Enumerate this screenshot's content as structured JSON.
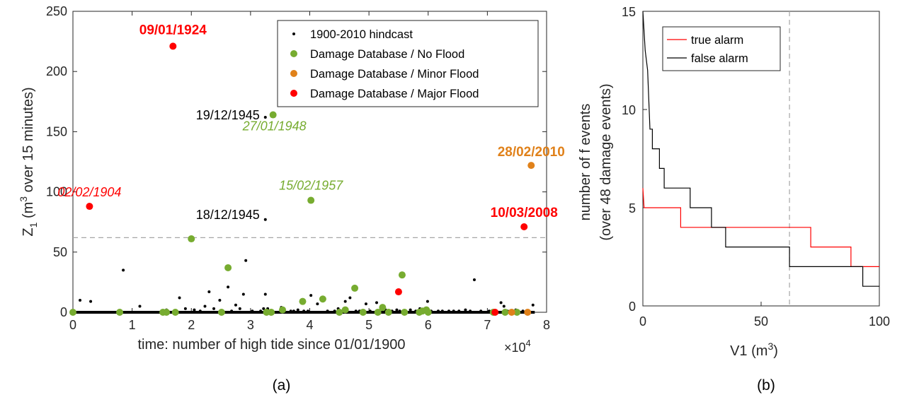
{
  "chart_data": [
    {
      "panel": "(a)",
      "type": "scatter",
      "xlabel": "time: number of high tide since 01/01/1900",
      "ylabel_prefix": "Z",
      "ylabel_sub": "1",
      "ylabel_mid": " (m",
      "ylabel_sup": "3",
      "ylabel_suffix": " over 15 minutes)",
      "xlim": [
        0,
        80000
      ],
      "ylim": [
        0,
        250
      ],
      "x_exponent_label": "×10",
      "x_exponent_power": "4",
      "xticks": [
        0,
        10000,
        20000,
        30000,
        40000,
        50000,
        60000,
        70000,
        80000
      ],
      "xtick_labels": [
        "0",
        "1",
        "2",
        "3",
        "4",
        "5",
        "6",
        "7",
        "8"
      ],
      "yticks": [
        0,
        50,
        100,
        150,
        200,
        250
      ],
      "ytick_labels": [
        "0",
        "50",
        "100",
        "150",
        "200",
        "250"
      ],
      "threshold_y": 62,
      "baseline": {
        "x_from": 0,
        "x_to": 78000,
        "y": 0
      },
      "legend_position": "top-right",
      "series": [
        {
          "name": "1900-2010 hindcast",
          "color": "#000000",
          "marker": "dot",
          "points": [
            [
              1200,
              10
            ],
            [
              3000,
              9
            ],
            [
              8500,
              35
            ],
            [
              11300,
              5
            ],
            [
              15800,
              2
            ],
            [
              18000,
              12
            ],
            [
              19000,
              3
            ],
            [
              20500,
              2
            ],
            [
              21500,
              1
            ],
            [
              22300,
              5
            ],
            [
              23000,
              17
            ],
            [
              23800,
              3
            ],
            [
              24800,
              10
            ],
            [
              26200,
              21
            ],
            [
              26800,
              1
            ],
            [
              27500,
              6
            ],
            [
              28200,
              3
            ],
            [
              28800,
              15
            ],
            [
              29200,
              43
            ],
            [
              30300,
              1
            ],
            [
              31700,
              1
            ],
            [
              32200,
              3
            ],
            [
              32500,
              15
            ],
            [
              32900,
              3
            ],
            [
              33500,
              1
            ],
            [
              33700,
              1
            ],
            [
              35200,
              4
            ],
            [
              36800,
              1
            ],
            [
              37300,
              1
            ],
            [
              38000,
              2
            ],
            [
              39000,
              1
            ],
            [
              39700,
              1
            ],
            [
              40200,
              14
            ],
            [
              41300,
              7
            ],
            [
              43000,
              1
            ],
            [
              44200,
              1
            ],
            [
              44800,
              3
            ],
            [
              45500,
              1
            ],
            [
              46000,
              9
            ],
            [
              46800,
              12
            ],
            [
              47800,
              1
            ],
            [
              48400,
              1
            ],
            [
              49500,
              7
            ],
            [
              50200,
              1
            ],
            [
              51300,
              8
            ],
            [
              52000,
              3
            ],
            [
              52800,
              2
            ],
            [
              53900,
              1
            ],
            [
              54700,
              2
            ],
            [
              55200,
              1
            ],
            [
              56000,
              1
            ],
            [
              57000,
              2
            ],
            [
              57900,
              1
            ],
            [
              58600,
              3
            ],
            [
              59300,
              1
            ],
            [
              59900,
              9
            ],
            [
              60500,
              1
            ],
            [
              61700,
              1
            ],
            [
              62400,
              1
            ],
            [
              63500,
              1
            ],
            [
              64300,
              1
            ],
            [
              65200,
              1
            ],
            [
              66300,
              2
            ],
            [
              67100,
              1
            ],
            [
              67800,
              27
            ],
            [
              68900,
              1
            ],
            [
              70300,
              1
            ],
            [
              71500,
              1
            ],
            [
              72300,
              8
            ],
            [
              72800,
              5
            ],
            [
              73400,
              1
            ],
            [
              74800,
              2
            ],
            [
              76000,
              1
            ],
            [
              77000,
              1
            ],
            [
              77700,
              6
            ],
            [
              32500,
              162
            ],
            [
              32500,
              77
            ]
          ]
        },
        {
          "name": "Damage Database / No Flood",
          "color": "#77ac30",
          "marker": "circle",
          "points": [
            [
              0,
              0
            ],
            [
              7900,
              0
            ],
            [
              15200,
              0
            ],
            [
              15800,
              0
            ],
            [
              17300,
              0
            ],
            [
              20000,
              61
            ],
            [
              26200,
              37
            ],
            [
              25100,
              0
            ],
            [
              32700,
              0
            ],
            [
              33500,
              0
            ],
            [
              33800,
              164
            ],
            [
              35400,
              2
            ],
            [
              38800,
              9
            ],
            [
              40200,
              93
            ],
            [
              42200,
              11
            ],
            [
              45000,
              0
            ],
            [
              46000,
              2
            ],
            [
              47600,
              20
            ],
            [
              49000,
              0
            ],
            [
              51500,
              0
            ],
            [
              52300,
              4
            ],
            [
              53300,
              0
            ],
            [
              55600,
              31
            ],
            [
              56000,
              0
            ],
            [
              58500,
              0
            ],
            [
              59000,
              1
            ],
            [
              59700,
              2
            ],
            [
              60000,
              0
            ],
            [
              71000,
              0
            ],
            [
              73000,
              0
            ],
            [
              75000,
              0
            ]
          ]
        },
        {
          "name": "Damage Database / Minor Flood",
          "color": "#d95319",
          "fill": "#e0811a",
          "marker": "circle",
          "points": [
            [
              74100,
              0
            ],
            [
              76800,
              0
            ],
            [
              77400,
              122
            ]
          ]
        },
        {
          "name": "Damage Database / Major Flood",
          "color": "#ff0000",
          "marker": "circle",
          "points": [
            [
              2800,
              88
            ],
            [
              16900,
              221
            ],
            [
              55000,
              17
            ],
            [
              71300,
              0
            ],
            [
              76200,
              71
            ]
          ]
        }
      ],
      "annotations": [
        {
          "text": "09/01/1924",
          "x": 16900,
          "y": 221,
          "color": "#ff0000",
          "style": "bold"
        },
        {
          "text": "02/02/1904",
          "x": 2800,
          "y": 88,
          "color": "#ff0000",
          "style": "italic"
        },
        {
          "text": "19/12/1945",
          "x": 32500,
          "y": 162,
          "color": "#000000",
          "style": "normal"
        },
        {
          "text": "18/12/1945",
          "x": 32500,
          "y": 77,
          "color": "#000000",
          "style": "normal"
        },
        {
          "text": "27/01/1948",
          "x": 33800,
          "y": 164,
          "color": "#77ac30",
          "style": "italic"
        },
        {
          "text": "15/02/1957",
          "x": 40200,
          "y": 93,
          "color": "#77ac30",
          "style": "italic"
        },
        {
          "text": "28/02/2010",
          "x": 77400,
          "y": 122,
          "color": "#e0811a",
          "style": "bold"
        },
        {
          "text": "10/03/2008",
          "x": 76200,
          "y": 71,
          "color": "#ff0000",
          "style": "bold"
        }
      ]
    },
    {
      "panel": "(b)",
      "type": "line",
      "xlabel_main": "V1 (m",
      "xlabel_sup": "3",
      "xlabel_end": ")",
      "ylabel_line1": "number of f events",
      "ylabel_line2": "(over 48 damage events)",
      "xlim": [
        0,
        100
      ],
      "ylim": [
        0,
        15
      ],
      "xticks": [
        0,
        50,
        100
      ],
      "xtick_labels": [
        "0",
        "50",
        "100"
      ],
      "yticks": [
        0,
        5,
        10,
        15
      ],
      "ytick_labels": [
        "0",
        "5",
        "10",
        "15"
      ],
      "threshold_x": 62,
      "legend_position": "top-right",
      "series": [
        {
          "name": "true alarm",
          "color": "#ff0000",
          "points": [
            [
              0,
              6
            ],
            [
              0.5,
              5
            ],
            [
              16,
              5
            ],
            [
              16,
              4
            ],
            [
              71,
              4
            ],
            [
              71,
              3
            ],
            [
              88,
              3
            ],
            [
              88,
              2
            ],
            [
              100,
              2
            ]
          ]
        },
        {
          "name": "false alarm",
          "color": "#000000",
          "points": [
            [
              0,
              15
            ],
            [
              1,
              13
            ],
            [
              2,
              12
            ],
            [
              3,
              9
            ],
            [
              4,
              9
            ],
            [
              4,
              8
            ],
            [
              7,
              8
            ],
            [
              7,
              7
            ],
            [
              9,
              7
            ],
            [
              9,
              6
            ],
            [
              20,
              6
            ],
            [
              20,
              5
            ],
            [
              29,
              5
            ],
            [
              29,
              4
            ],
            [
              35,
              4
            ],
            [
              35,
              3
            ],
            [
              62,
              3
            ],
            [
              62,
              2
            ],
            [
              93,
              2
            ],
            [
              93,
              1
            ],
            [
              100,
              1
            ]
          ]
        }
      ]
    }
  ],
  "panel_labels": {
    "a": "(a)",
    "b": "(b)"
  }
}
